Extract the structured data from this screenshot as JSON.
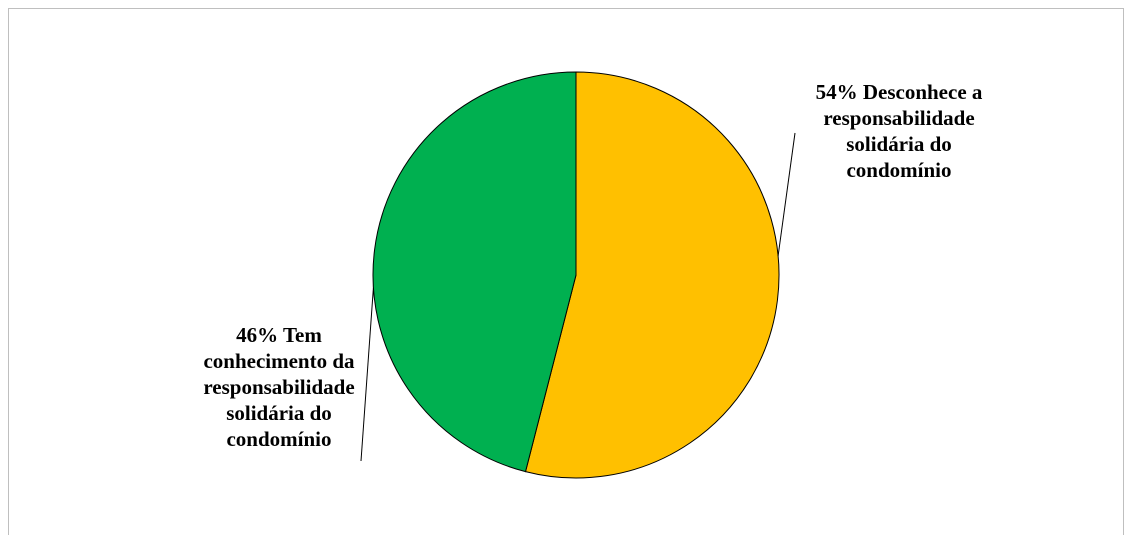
{
  "chart_data": {
    "type": "pie",
    "title": "",
    "slices": [
      {
        "percent": 54,
        "value": 54,
        "color": "#FFC000",
        "label_lines": [
          "54% Desconhece a",
          "responsabilidade",
          "solidária do",
          "condomínio"
        ]
      },
      {
        "percent": 46,
        "value": 46,
        "color": "#00B050",
        "label_lines": [
          "46% Tem",
          "conhecimento da",
          "responsabilidade",
          "solidária do",
          "condomínio"
        ]
      }
    ],
    "start_angle_deg": 0,
    "direction": "clockwise",
    "legend": "none",
    "data_labels": "outside-with-leader-lines",
    "border_color": "#000000"
  }
}
